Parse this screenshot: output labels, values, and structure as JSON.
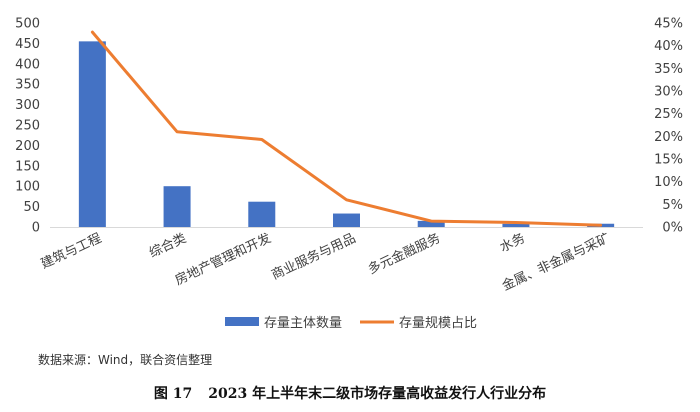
{
  "chart_data": {
    "type": "bar+line",
    "categories": [
      "建筑与工程",
      "综合类",
      "房地产管理和开发",
      "商业服务与用品",
      "多元金融服务",
      "水务",
      "金属、非金属与采矿"
    ],
    "series": [
      {
        "name": "存量主体数量",
        "type": "bar",
        "axis": "left",
        "values": [
          455,
          100,
          62,
          33,
          15,
          8,
          8
        ]
      },
      {
        "name": "存量规模占比",
        "type": "line",
        "axis": "right",
        "values": [
          0.43,
          0.21,
          0.193,
          0.06,
          0.013,
          0.01,
          0.004
        ]
      }
    ],
    "y_left": {
      "min": 0,
      "max": 500,
      "step": 50
    },
    "y_right": {
      "min": 0,
      "max": 0.45,
      "step": 0.05,
      "format": "percent"
    },
    "colors": {
      "bar": "#4472C4",
      "line": "#ED7D31",
      "axis": "#d9d9d9"
    },
    "legend_position": "bottom",
    "grid": false
  },
  "source_note": "数据来源：Wind，联合资信整理",
  "caption": {
    "label": "图 17",
    "text": "2023 年上半年末二级市场存量高收益发行人行业分布"
  }
}
